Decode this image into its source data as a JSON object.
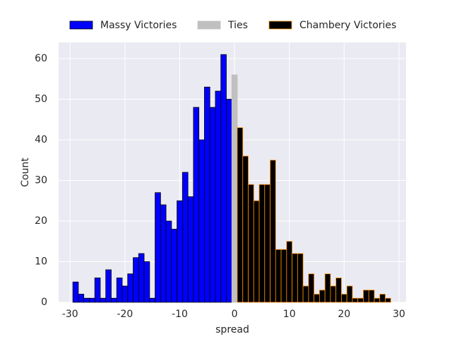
{
  "chart_data": {
    "type": "histogram",
    "xlabel": "spread",
    "ylabel": "Count",
    "xlim": [
      -32.1,
      31.3
    ],
    "ylim": [
      0,
      64
    ],
    "xticks": [
      -30,
      -20,
      -10,
      0,
      10,
      20,
      30
    ],
    "yticks": [
      0,
      10,
      20,
      30,
      40,
      50,
      60
    ],
    "grid": true,
    "legend": "top",
    "series": [
      {
        "name": "Massy Victories",
        "color": "#0000ff",
        "edgecolor": "#000000",
        "bins": [
          -29.5,
          -28.5,
          -27.5,
          -26.5,
          -25.5,
          -24.5,
          -23.5,
          -22.5,
          -21.5,
          -20.5,
          -19.5,
          -18.5,
          -17.5,
          -16.5,
          -15.5,
          -14.5,
          -13.5,
          -12.5,
          -11.5,
          -10.5,
          -9.5,
          -8.5,
          -7.5,
          -6.5,
          -5.5,
          -4.5,
          -3.5,
          -2.5,
          -1.5,
          -0.5
        ],
        "values": [
          5,
          2,
          1,
          1,
          6,
          1,
          8,
          1,
          6,
          4,
          7,
          11,
          12,
          10,
          1,
          27,
          24,
          20,
          18,
          25,
          32,
          26,
          48,
          40,
          53,
          48,
          52,
          61,
          50
        ]
      },
      {
        "name": "Ties",
        "color": "#c0c0c0",
        "edgecolor": "#c0c0c0",
        "bins": [
          -0.5,
          0.5
        ],
        "values": [
          56
        ]
      },
      {
        "name": "Chambery Victories",
        "color": "#000000",
        "edgecolor": "#ff8c00",
        "bins": [
          0.5,
          1.5,
          2.5,
          3.5,
          4.5,
          5.5,
          6.5,
          7.5,
          8.5,
          9.5,
          10.5,
          11.5,
          12.5,
          13.5,
          14.5,
          15.5,
          16.5,
          17.5,
          18.5,
          19.5,
          20.5,
          21.5,
          22.5,
          23.5,
          24.5,
          25.5,
          26.5,
          27.5,
          28.5
        ],
        "values": [
          43,
          36,
          29,
          25,
          29,
          29,
          35,
          13,
          13,
          15,
          12,
          12,
          4,
          7,
          2,
          3,
          7,
          4,
          6,
          2,
          4,
          1,
          1,
          3,
          3,
          1,
          2,
          1
        ]
      }
    ]
  }
}
